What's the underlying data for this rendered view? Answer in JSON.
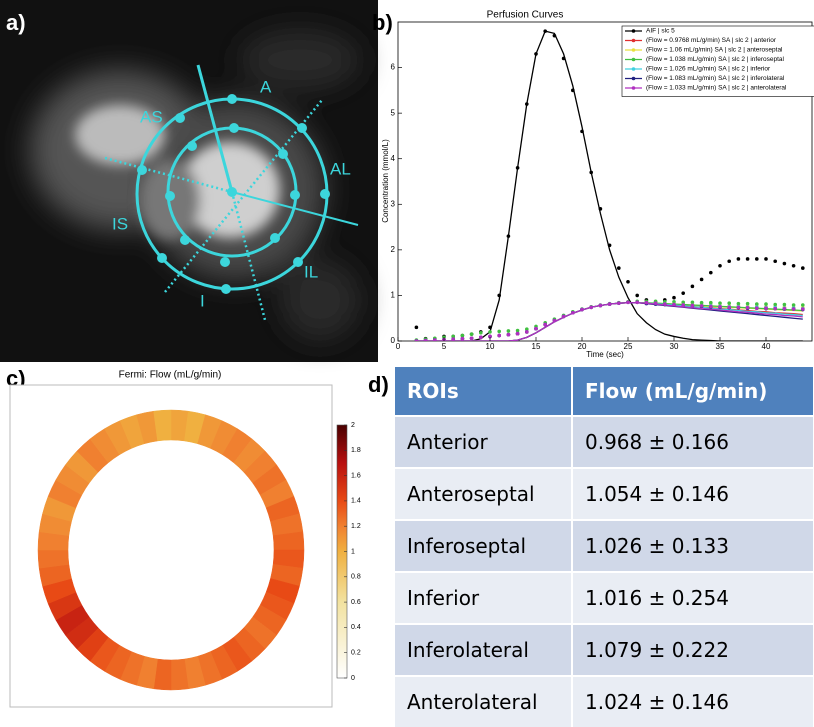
{
  "panel_labels": [
    "a)",
    "b)",
    "c)",
    "d)"
  ],
  "image_labels": [
    "A",
    "AS",
    "AL",
    "IS",
    "IL",
    "I"
  ],
  "chart_data": [
    {
      "type": "line",
      "title": "Perfusion Curves",
      "x_label": "Time (sec)",
      "y_label": "Concentration (mmol/L)",
      "x": [
        2,
        3,
        4,
        5,
        6,
        7,
        8,
        9,
        10,
        11,
        12,
        13,
        14,
        15,
        16,
        17,
        18,
        19,
        20,
        21,
        22,
        23,
        24,
        25,
        26,
        27,
        28,
        29,
        30,
        31,
        32,
        33,
        34,
        35,
        36,
        37,
        38,
        39,
        40,
        41,
        42,
        43,
        44
      ],
      "xlim": [
        0,
        45
      ],
      "xticks": [
        0,
        5,
        10,
        15,
        20,
        25,
        30,
        35,
        40
      ],
      "ylim": [
        0,
        7
      ],
      "yticks": [
        0,
        1,
        2,
        3,
        4,
        5,
        6
      ],
      "series": [
        {
          "name": "AIF | slc 5",
          "color": "#000000",
          "values": [
            0.3,
            0.05,
            0.05,
            0.1,
            0.1,
            0.12,
            0.15,
            0.2,
            0.3,
            1.0,
            2.3,
            3.8,
            5.2,
            6.3,
            6.8,
            6.7,
            6.2,
            5.5,
            4.6,
            3.7,
            2.9,
            2.1,
            1.6,
            1.3,
            1.0,
            0.9,
            0.85,
            0.9,
            0.95,
            1.05,
            1.2,
            1.35,
            1.5,
            1.65,
            1.75,
            1.8,
            1.8,
            1.8,
            1.8,
            1.75,
            1.7,
            1.65,
            1.6
          ],
          "fit": [
            0,
            0,
            0,
            0,
            0,
            0,
            0,
            0.05,
            0.2,
            0.9,
            2.3,
            3.8,
            5.2,
            6.3,
            6.8,
            6.75,
            6.3,
            5.6,
            4.7,
            3.7,
            2.8,
            2.0,
            1.4,
            0.95,
            0.6,
            0.4,
            0.25,
            0.15,
            0.1,
            0.06,
            0.03,
            0.02,
            0.01,
            0,
            0,
            0,
            0,
            0,
            0,
            0,
            0,
            0,
            0
          ]
        },
        {
          "name": "(Flow = 0.9768 mL/g/min) SA | slc 2 | anterior",
          "color": "#e03030",
          "values": [
            0,
            0.01,
            0.02,
            0.03,
            0.04,
            0.05,
            0.06,
            0.08,
            0.1,
            0.12,
            0.14,
            0.16,
            0.2,
            0.27,
            0.36,
            0.45,
            0.54,
            0.62,
            0.69,
            0.74,
            0.78,
            0.81,
            0.83,
            0.85,
            0.85,
            0.84,
            0.83,
            0.82,
            0.81,
            0.8,
            0.79,
            0.78,
            0.77,
            0.76,
            0.76,
            0.75,
            0.75,
            0.74,
            0.74,
            0.73,
            0.73,
            0.72,
            0.72
          ],
          "fit": [
            0,
            0,
            0,
            0,
            0,
            0,
            0,
            0,
            0,
            0,
            0,
            0.02,
            0.08,
            0.18,
            0.3,
            0.42,
            0.52,
            0.61,
            0.68,
            0.74,
            0.78,
            0.81,
            0.83,
            0.84,
            0.84,
            0.83,
            0.82,
            0.8,
            0.79,
            0.77,
            0.76,
            0.74,
            0.73,
            0.71,
            0.7,
            0.68,
            0.67,
            0.65,
            0.64,
            0.62,
            0.61,
            0.6,
            0.58
          ]
        },
        {
          "name": "(Flow = 1.06 mL/g/min) SA | slc 2 | anteroseptal",
          "color": "#e8e040",
          "values": [
            0,
            0.01,
            0.02,
            0.03,
            0.04,
            0.05,
            0.06,
            0.08,
            0.1,
            0.12,
            0.14,
            0.16,
            0.2,
            0.27,
            0.36,
            0.45,
            0.54,
            0.62,
            0.69,
            0.74,
            0.78,
            0.81,
            0.83,
            0.85,
            0.85,
            0.85,
            0.84,
            0.83,
            0.82,
            0.81,
            0.8,
            0.79,
            0.79,
            0.78,
            0.77,
            0.77,
            0.76,
            0.76,
            0.75,
            0.75,
            0.74,
            0.74,
            0.73
          ],
          "fit": [
            0,
            0,
            0,
            0,
            0,
            0,
            0,
            0,
            0,
            0,
            0,
            0.02,
            0.08,
            0.18,
            0.3,
            0.42,
            0.52,
            0.61,
            0.68,
            0.74,
            0.78,
            0.81,
            0.83,
            0.84,
            0.84,
            0.84,
            0.83,
            0.82,
            0.81,
            0.8,
            0.78,
            0.77,
            0.76,
            0.75,
            0.74,
            0.73,
            0.72,
            0.71,
            0.7,
            0.69,
            0.68,
            0.67,
            0.66
          ]
        },
        {
          "name": "(Flow = 1.038 mL/g/min) SA | slc 2 | inferoseptal",
          "color": "#40c040",
          "values": [
            0.02,
            0.04,
            0.06,
            0.08,
            0.1,
            0.12,
            0.15,
            0.18,
            0.2,
            0.21,
            0.22,
            0.23,
            0.26,
            0.32,
            0.4,
            0.48,
            0.56,
            0.64,
            0.7,
            0.75,
            0.79,
            0.82,
            0.84,
            0.86,
            0.87,
            0.87,
            0.87,
            0.86,
            0.86,
            0.85,
            0.85,
            0.84,
            0.84,
            0.83,
            0.83,
            0.82,
            0.82,
            0.81,
            0.81,
            0.8,
            0.8,
            0.79,
            0.79
          ],
          "fit": [
            0,
            0,
            0,
            0,
            0,
            0,
            0,
            0,
            0,
            0,
            0,
            0.02,
            0.08,
            0.18,
            0.3,
            0.42,
            0.52,
            0.61,
            0.68,
            0.74,
            0.78,
            0.81,
            0.83,
            0.84,
            0.84,
            0.84,
            0.83,
            0.82,
            0.81,
            0.8,
            0.79,
            0.78,
            0.77,
            0.76,
            0.75,
            0.74,
            0.73,
            0.72,
            0.71,
            0.7,
            0.69,
            0.68,
            0.67
          ]
        },
        {
          "name": "(Flow = 1.026 mL/g/min) SA | slc 2 | inferior",
          "color": "#40d0e0",
          "values": [
            0,
            0.01,
            0.02,
            0.03,
            0.04,
            0.05,
            0.06,
            0.08,
            0.1,
            0.12,
            0.14,
            0.16,
            0.2,
            0.27,
            0.36,
            0.45,
            0.54,
            0.62,
            0.69,
            0.74,
            0.78,
            0.81,
            0.83,
            0.85,
            0.85,
            0.83,
            0.82,
            0.81,
            0.8,
            0.79,
            0.78,
            0.77,
            0.77,
            0.76,
            0.75,
            0.75,
            0.74,
            0.74,
            0.73,
            0.73,
            0.72,
            0.72,
            0.71
          ],
          "fit": [
            0,
            0,
            0,
            0,
            0,
            0,
            0,
            0,
            0,
            0,
            0,
            0.02,
            0.08,
            0.18,
            0.3,
            0.42,
            0.52,
            0.61,
            0.68,
            0.74,
            0.78,
            0.81,
            0.83,
            0.84,
            0.84,
            0.83,
            0.82,
            0.8,
            0.79,
            0.77,
            0.75,
            0.74,
            0.72,
            0.7,
            0.69,
            0.67,
            0.65,
            0.64,
            0.62,
            0.61,
            0.59,
            0.58,
            0.56
          ]
        },
        {
          "name": "(Flow = 1.083 mL/g/min) SA | slc 2 | inferolateral",
          "color": "#202080",
          "values": [
            0,
            0.01,
            0.02,
            0.03,
            0.04,
            0.05,
            0.06,
            0.08,
            0.1,
            0.12,
            0.14,
            0.16,
            0.2,
            0.27,
            0.36,
            0.45,
            0.54,
            0.62,
            0.69,
            0.74,
            0.78,
            0.81,
            0.83,
            0.85,
            0.85,
            0.82,
            0.81,
            0.8,
            0.79,
            0.78,
            0.77,
            0.76,
            0.75,
            0.74,
            0.73,
            0.73,
            0.72,
            0.72,
            0.71,
            0.71,
            0.7,
            0.7,
            0.69
          ],
          "fit": [
            0,
            0,
            0,
            0,
            0,
            0,
            0,
            0,
            0,
            0,
            0,
            0.02,
            0.08,
            0.18,
            0.3,
            0.42,
            0.52,
            0.61,
            0.68,
            0.74,
            0.78,
            0.81,
            0.83,
            0.84,
            0.84,
            0.82,
            0.8,
            0.78,
            0.76,
            0.74,
            0.72,
            0.7,
            0.68,
            0.66,
            0.64,
            0.62,
            0.6,
            0.58,
            0.56,
            0.54,
            0.52,
            0.5,
            0.48
          ]
        },
        {
          "name": "(Flow = 1.033 mL/g/min) SA | slc 2 | anterolateral",
          "color": "#b030c0",
          "values": [
            0,
            0.01,
            0.02,
            0.03,
            0.04,
            0.05,
            0.06,
            0.08,
            0.1,
            0.12,
            0.14,
            0.16,
            0.2,
            0.27,
            0.36,
            0.45,
            0.54,
            0.62,
            0.69,
            0.74,
            0.78,
            0.81,
            0.83,
            0.85,
            0.85,
            0.84,
            0.83,
            0.81,
            0.8,
            0.79,
            0.78,
            0.77,
            0.76,
            0.75,
            0.74,
            0.74,
            0.73,
            0.72,
            0.72,
            0.71,
            0.71,
            0.7,
            0.7
          ],
          "fit": [
            0,
            0,
            0,
            0,
            0,
            0,
            0,
            0,
            0,
            0,
            0,
            0.02,
            0.08,
            0.18,
            0.3,
            0.42,
            0.52,
            0.61,
            0.68,
            0.74,
            0.78,
            0.81,
            0.83,
            0.84,
            0.84,
            0.83,
            0.81,
            0.79,
            0.77,
            0.75,
            0.73,
            0.71,
            0.7,
            0.68,
            0.66,
            0.64,
            0.63,
            0.61,
            0.59,
            0.58,
            0.56,
            0.55,
            0.53
          ]
        }
      ]
    },
    {
      "type": "heatmap",
      "title": "Fermi: Flow (mL/g/min)",
      "values": [
        1.05,
        1.0,
        1.1,
        1.15,
        1.2,
        1.15,
        1.2,
        1.25,
        1.2,
        1.3,
        1.25,
        1.3,
        1.35,
        1.3,
        1.4,
        1.35,
        1.3,
        1.25,
        1.3,
        1.35,
        1.3,
        1.25,
        1.2,
        1.25,
        1.3,
        1.2,
        1.25,
        1.3,
        1.35,
        1.45,
        1.55,
        1.6,
        1.5,
        1.4,
        1.3,
        1.25,
        1.2,
        1.15,
        1.1,
        1.2,
        1.15,
        1.1,
        1.2,
        1.15,
        1.1,
        1.05,
        1.1,
        1.0
      ],
      "clim": [
        0,
        2
      ],
      "cticks": [
        0,
        0.2,
        0.4,
        0.6,
        0.8,
        1,
        1.2,
        1.4,
        1.6,
        1.8,
        2
      ]
    }
  ],
  "table": {
    "header": [
      "ROIs",
      "Flow (mL/g/min)"
    ],
    "rows": [
      [
        "Anterior",
        "0.968 ± 0.166"
      ],
      [
        "Anteroseptal",
        "1.054 ± 0.146"
      ],
      [
        "Inferoseptal",
        "1.026 ± 0.133"
      ],
      [
        "Inferior",
        "1.016 ± 0.254"
      ],
      [
        "Inferolateral",
        "1.079 ± 0.222"
      ],
      [
        "Anterolateral",
        "1.024 ± 0.146"
      ]
    ]
  }
}
